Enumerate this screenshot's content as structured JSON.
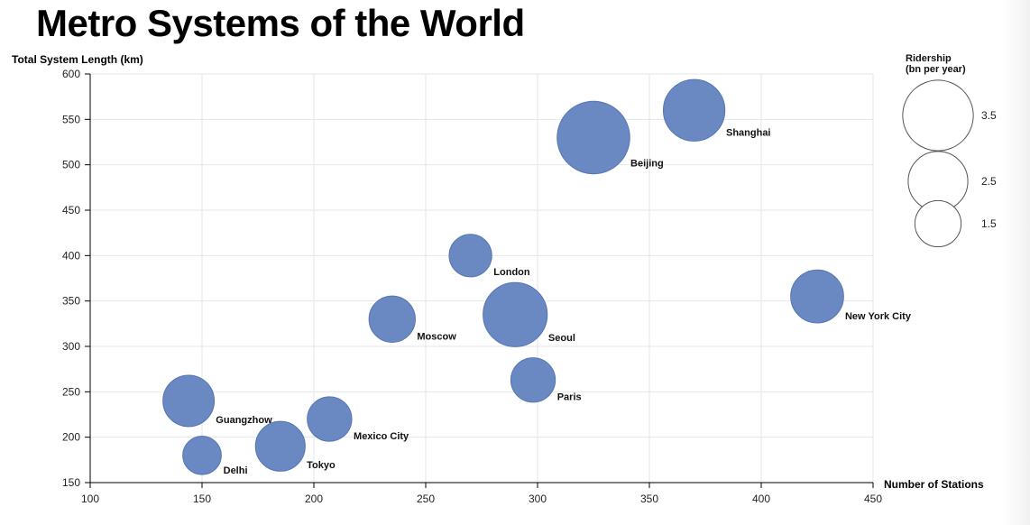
{
  "title": "Metro Systems of the World",
  "chart_data": {
    "type": "scatter",
    "xlabel": "Number of Stations",
    "ylabel": "Total System Length (km)",
    "xlim": [
      100,
      450
    ],
    "ylim": [
      150,
      600
    ],
    "x_ticks": [
      100,
      150,
      200,
      250,
      300,
      350,
      400,
      450
    ],
    "y_ticks": [
      150,
      200,
      250,
      300,
      350,
      400,
      450,
      500,
      550,
      600
    ],
    "grid": true,
    "bubble_color": "#6a89c2",
    "points": [
      {
        "label": "Beijing",
        "x": 325,
        "y": 530,
        "ridership": 3.2
      },
      {
        "label": "Shanghai",
        "x": 370,
        "y": 560,
        "ridership": 2.3
      },
      {
        "label": "London",
        "x": 270,
        "y": 400,
        "ridership": 1.1
      },
      {
        "label": "New York City",
        "x": 425,
        "y": 355,
        "ridership": 1.7
      },
      {
        "label": "Seoul",
        "x": 290,
        "y": 335,
        "ridership": 2.5
      },
      {
        "label": "Moscow",
        "x": 235,
        "y": 330,
        "ridership": 1.3
      },
      {
        "label": "Paris",
        "x": 298,
        "y": 263,
        "ridership": 1.2
      },
      {
        "label": "Guangzhow",
        "x": 144,
        "y": 240,
        "ridership": 1.6
      },
      {
        "label": "Mexico City",
        "x": 207,
        "y": 220,
        "ridership": 1.2
      },
      {
        "label": "Tokyo",
        "x": 185,
        "y": 190,
        "ridership": 1.5
      },
      {
        "label": "Delhi",
        "x": 150,
        "y": 180,
        "ridership": 0.9
      }
    ],
    "legend": {
      "title_lines": [
        "Ridership",
        "(bn per year)"
      ],
      "placement": "top-right",
      "sizes": [
        3.5,
        2.5,
        1.5
      ],
      "labels": [
        "3.5",
        "2.5",
        "1.5"
      ]
    }
  }
}
